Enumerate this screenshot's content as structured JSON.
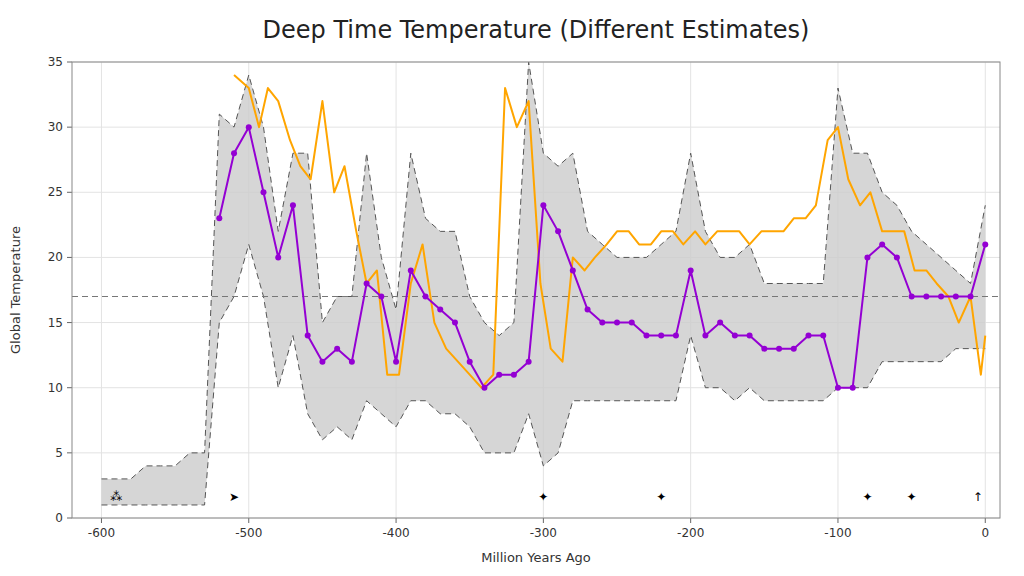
{
  "chart_data": {
    "type": "line",
    "title": "Deep Time Temperature (Different Estimates)",
    "x_label": "Million Years Ago",
    "y_label": "Global Temperature",
    "xlim": [
      -620,
      10
    ],
    "ylim": [
      0,
      35
    ],
    "xticks": [
      -600,
      -500,
      -400,
      -300,
      -200,
      -100,
      0
    ],
    "yticks": [
      0,
      5,
      10,
      15,
      20,
      25,
      30,
      35
    ],
    "grid": true,
    "series": [
      {
        "type": "area",
        "color": "#cccccc",
        "line_style": "dashed",
        "x": [
          -600,
          -590,
          -580,
          -570,
          -560,
          -550,
          -540,
          -530,
          -520,
          -510,
          -500,
          -490,
          -480,
          -470,
          -460,
          -450,
          -440,
          -430,
          -420,
          -410,
          -400,
          -390,
          -380,
          -370,
          -360,
          -350,
          -340,
          -330,
          -320,
          -310,
          -300,
          -290,
          -280,
          -270,
          -260,
          -250,
          -240,
          -230,
          -220,
          -210,
          -200,
          -190,
          -180,
          -170,
          -160,
          -150,
          -140,
          -130,
          -120,
          -110,
          -100,
          -90,
          -80,
          -70,
          -60,
          -50,
          -40,
          -30,
          -20,
          -10,
          0
        ],
        "upper": [
          3,
          3,
          3,
          4,
          4,
          4,
          5,
          5,
          31,
          30,
          34,
          30,
          22,
          28,
          28,
          15,
          17,
          17,
          28,
          20,
          16,
          28,
          23,
          22,
          22,
          17,
          15,
          14,
          15,
          35,
          28,
          27,
          28,
          22,
          21,
          20,
          20,
          20,
          21,
          22,
          28,
          22,
          20,
          20,
          21,
          18,
          18,
          18,
          18,
          18,
          33,
          28,
          28,
          25,
          24,
          22,
          21,
          20,
          19,
          18,
          24
        ],
        "lower": [
          1,
          1,
          1,
          1,
          1,
          1,
          1,
          1,
          15,
          17,
          21,
          17,
          10,
          14,
          8,
          6,
          7,
          6,
          9,
          8,
          7,
          9,
          9,
          8,
          8,
          7,
          5,
          5,
          5,
          8,
          4,
          5,
          9,
          9,
          9,
          9,
          9,
          9,
          9,
          9,
          14,
          10,
          10,
          9,
          10,
          9,
          9,
          9,
          9,
          9,
          10,
          10,
          10,
          12,
          12,
          12,
          12,
          12,
          13,
          13,
          13
        ]
      },
      {
        "type": "line",
        "color": "#FFA500",
        "x": [
          -510,
          -500,
          -493,
          -487,
          -480,
          -472,
          -465,
          -458,
          -450,
          -442,
          -435,
          -427,
          -420,
          -413,
          -406,
          -398,
          -390,
          -382,
          -374,
          -366,
          -358,
          -350,
          -342,
          -334,
          -326,
          -318,
          -310,
          -302,
          -295,
          -287,
          -280,
          -272,
          -265,
          -257,
          -250,
          -242,
          -235,
          -227,
          -220,
          -212,
          -205,
          -197,
          -190,
          -182,
          -175,
          -167,
          -160,
          -152,
          -145,
          -137,
          -130,
          -122,
          -115,
          -107,
          -100,
          -93,
          -85,
          -78,
          -70,
          -63,
          -55,
          -48,
          -40,
          -33,
          -25,
          -18,
          -10,
          -3,
          0
        ],
        "values": [
          34,
          33,
          30,
          33,
          32,
          29,
          27,
          26,
          32,
          25,
          27,
          22,
          18,
          19,
          11,
          11,
          18,
          21,
          15,
          13,
          12,
          11,
          10,
          11,
          33,
          30,
          32,
          18,
          13,
          12,
          20,
          19,
          20,
          21,
          22,
          22,
          21,
          21,
          22,
          22,
          21,
          22,
          21,
          22,
          22,
          22,
          21,
          22,
          22,
          22,
          23,
          23,
          24,
          29,
          30,
          26,
          24,
          25,
          22,
          22,
          22,
          19,
          19,
          18,
          17,
          15,
          17,
          11,
          14
        ]
      },
      {
        "type": "line",
        "color": "#9400D3",
        "marker": "circle",
        "x": [
          -520,
          -510,
          -500,
          -490,
          -480,
          -470,
          -460,
          -450,
          -440,
          -430,
          -420,
          -410,
          -400,
          -390,
          -380,
          -370,
          -360,
          -350,
          -340,
          -330,
          -320,
          -310,
          -300,
          -290,
          -280,
          -270,
          -260,
          -250,
          -240,
          -230,
          -220,
          -210,
          -200,
          -190,
          -180,
          -170,
          -160,
          -150,
          -140,
          -130,
          -120,
          -110,
          -100,
          -90,
          -80,
          -70,
          -60,
          -50,
          -40,
          -30,
          -20,
          -10,
          0
        ],
        "values": [
          23,
          28,
          30,
          25,
          20,
          24,
          14,
          12,
          13,
          12,
          18,
          17,
          12,
          19,
          17,
          16,
          15,
          12,
          10,
          11,
          11,
          12,
          24,
          22,
          19,
          16,
          15,
          15,
          15,
          14,
          14,
          14,
          19,
          14,
          15,
          14,
          14,
          13,
          13,
          13,
          14,
          14,
          10,
          10,
          20,
          21,
          20,
          17,
          17,
          17,
          17,
          17,
          21
        ]
      }
    ],
    "reference_lines": [
      {
        "value": 17,
        "line_style": "dashed"
      }
    ],
    "annotations": [
      {
        "text": "⁂",
        "x": -590,
        "y": 1.3
      },
      {
        "text": "➤",
        "x": -510,
        "y": 1.3
      },
      {
        "text": "✦",
        "x": -300,
        "y": 1.3
      },
      {
        "text": "✦",
        "x": -220,
        "y": 1.3
      },
      {
        "text": "✦",
        "x": -80,
        "y": 1.3
      },
      {
        "text": "✦",
        "x": -50,
        "y": 1.3
      },
      {
        "text": "↑",
        "x": -5,
        "y": 1.3
      }
    ]
  }
}
